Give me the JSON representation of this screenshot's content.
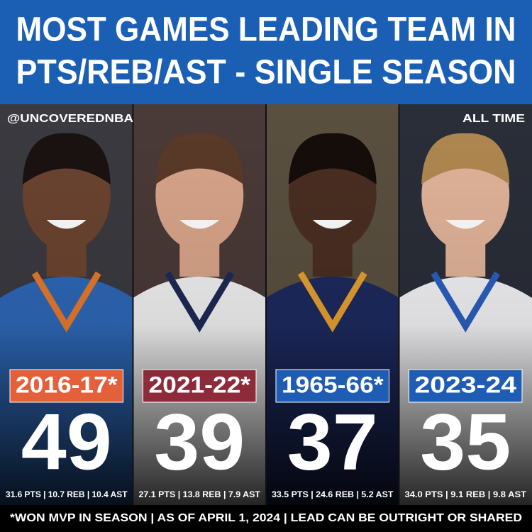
{
  "header": {
    "title_line1": "MOST GAMES LEADING TEAM IN",
    "title_line2": "PTS/REB/AST - SINGLE SEASON"
  },
  "handle": "@UNCOVEREDNBA",
  "scope": "ALL TIME",
  "players": [
    {
      "season": "2016-17*",
      "games": 49,
      "stats": "31.6 PTS | 10.7 REB | 10.4 AST",
      "badge_color": "#e4603b"
    },
    {
      "season": "2021-22*",
      "games": 39,
      "stats": "27.1 PTS | 13.8 REB | 7.9 AST",
      "badge_color": "#8e2b3b"
    },
    {
      "season": "1965-66*",
      "games": 37,
      "stats": "33.5 PTS | 24.6 REB | 5.2 AST",
      "badge_color": "#1f5cb3"
    },
    {
      "season": "2023-24",
      "games": 35,
      "stats": "34.0 PTS | 9.1 REB | 9.8 AST",
      "badge_color": "#1f5cb3"
    }
  ],
  "footnote": "*WON MVP IN SEASON | AS OF APRIL 1, 2024 | LEAD CAN BE OUTRIGHT OR SHARED"
}
